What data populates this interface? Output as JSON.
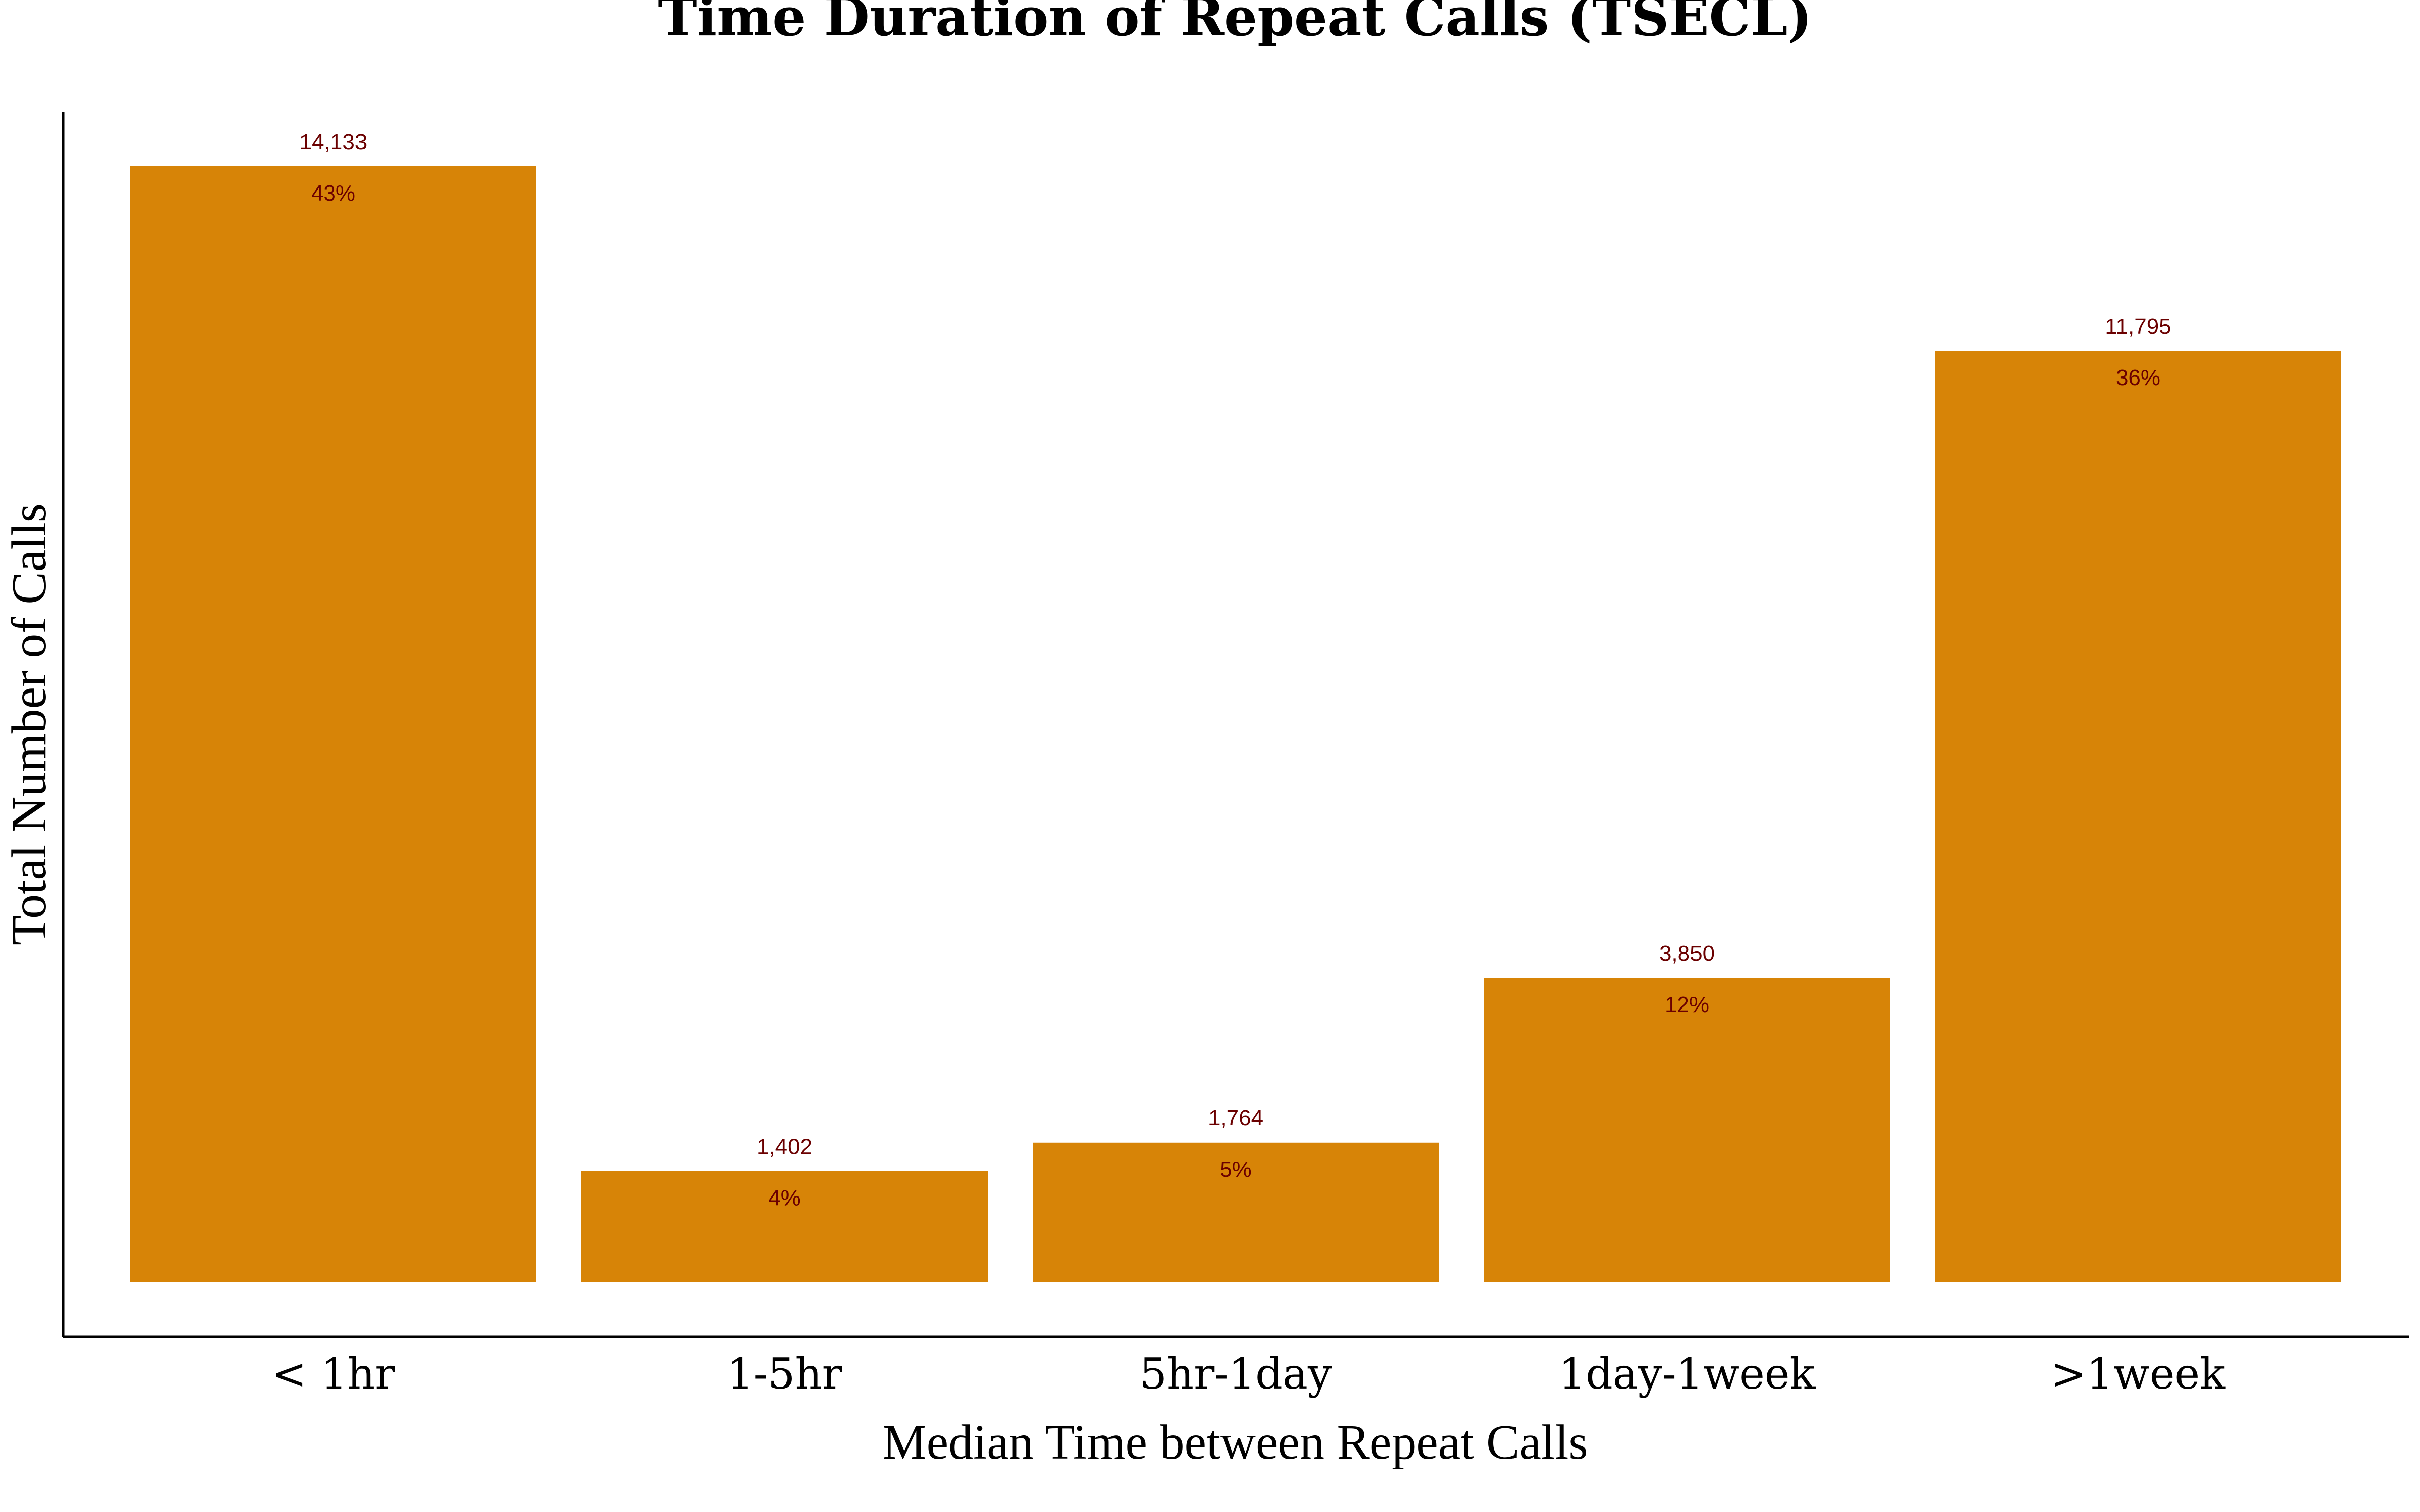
{
  "chart_data": {
    "type": "bar",
    "title": "Time Duration of Repeat Calls (TSECL)",
    "xlabel": "Median Time between Repeat Calls",
    "ylabel": "Total Number of Calls",
    "categories": [
      "< 1hr",
      "1-5hr",
      "5hr-1day",
      "1day-1week",
      ">1week"
    ],
    "values": [
      14133,
      1402,
      1764,
      3850,
      11795
    ],
    "value_labels": [
      "14,133",
      "1,402",
      "1,764",
      "3,850",
      "11,795"
    ],
    "percent_labels": [
      "43%",
      "4%",
      "5%",
      "12%",
      "36%"
    ],
    "ylim": [
      0,
      15000
    ],
    "grid": false,
    "legend": "none",
    "colors": {
      "bar": "#d78407",
      "label": "#6b0000",
      "axis": "#000000"
    }
  }
}
